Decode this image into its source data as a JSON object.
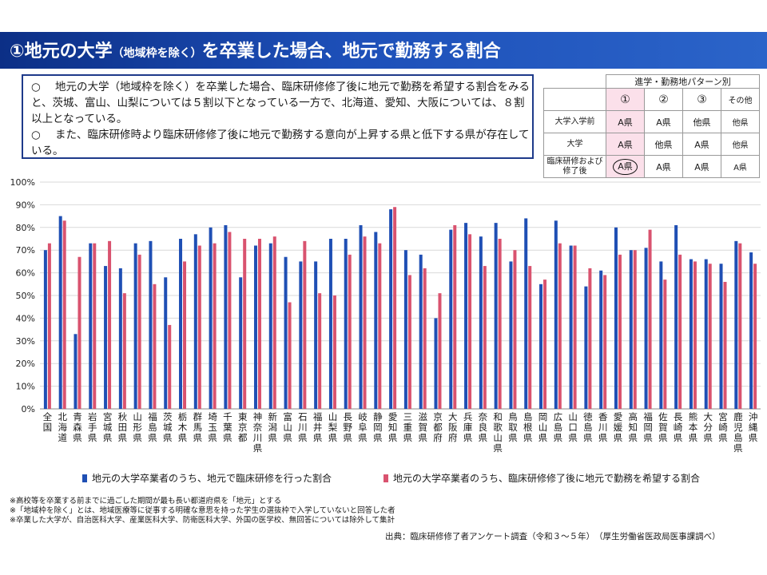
{
  "title": {
    "prefix": "①地元の大学",
    "paren": "（地域枠を除く）",
    "suffix": "を卒業した場合、地元で勤務する割合"
  },
  "summary": {
    "bullet_mark": "○",
    "items": [
      "地元の大学（地域枠を除く）を卒業した場合、臨床研修修了後に地元で勤務を希望する割合をみると、茨城、富山、山梨については５割以下となっている一方で、北海道、愛知、大阪については、８割以上となっている。",
      "また、臨床研修時より臨床研修修了後に地元で勤務する意向が上昇する県と低下する県が存在している。"
    ]
  },
  "pattern_table": {
    "header": "進学・勤務地パターン別",
    "columns": [
      "①",
      "②",
      "③",
      "その他"
    ],
    "rows": [
      {
        "label": "大学入学前",
        "cells": [
          "A県",
          "A県",
          "他県",
          "他県"
        ]
      },
      {
        "label": "大学",
        "cells": [
          "A県",
          "他県",
          "A県",
          "他県"
        ]
      },
      {
        "label": "臨床研修および修了後",
        "cells": [
          "A県",
          "A県",
          "A県",
          "A県"
        ]
      }
    ]
  },
  "chart_data": {
    "type": "bar",
    "ylim": [
      0,
      100
    ],
    "yticks": [
      "0%",
      "10%",
      "20%",
      "30%",
      "40%",
      "50%",
      "60%",
      "70%",
      "80%",
      "90%",
      "100%"
    ],
    "categories": [
      "全国",
      "北海道",
      "青森県",
      "岩手県",
      "宮城県",
      "秋田県",
      "山形県",
      "福島県",
      "茨城県",
      "栃木県",
      "群馬県",
      "埼玉県",
      "千葉県",
      "東京都",
      "神奈川県",
      "新潟県",
      "富山県",
      "石川県",
      "福井県",
      "山梨県",
      "長野県",
      "岐阜県",
      "静岡県",
      "愛知県",
      "三重県",
      "滋賀県",
      "京都府",
      "大阪府",
      "兵庫県",
      "奈良県",
      "和歌山県",
      "鳥取県",
      "島根県",
      "岡山県",
      "広島県",
      "山口県",
      "徳島県",
      "香川県",
      "愛媛県",
      "高知県",
      "福岡県",
      "佐賀県",
      "長崎県",
      "熊本県",
      "大分県",
      "宮崎県",
      "鹿児島県",
      "沖縄県"
    ],
    "series": [
      {
        "name": "地元の大学卒業者のうち、地元で臨床研修を行った割合",
        "color": "#1f4fb4",
        "values": [
          70,
          85,
          33,
          73,
          63,
          62,
          73,
          74,
          58,
          75,
          77,
          80,
          81,
          58,
          72,
          73,
          67,
          65,
          65,
          75,
          75,
          81,
          78,
          88,
          70,
          68,
          40,
          79,
          82,
          76,
          82,
          65,
          84,
          55,
          83,
          72,
          54,
          61,
          80,
          70,
          71,
          65,
          81,
          66,
          66,
          64,
          74,
          69
        ]
      },
      {
        "name": "地元の大学卒業者のうち、臨床研修修了後に地元で勤務を希望する割合",
        "color": "#d9536f",
        "values": [
          73,
          83,
          67,
          73,
          74,
          51,
          68,
          55,
          37,
          65,
          72,
          73,
          78,
          75,
          75,
          76,
          47,
          74,
          51,
          50,
          68,
          76,
          73,
          89,
          59,
          62,
          51,
          81,
          77,
          63,
          75,
          70,
          63,
          57,
          73,
          72,
          62,
          59,
          68,
          70,
          79,
          57,
          68,
          65,
          64,
          56,
          73,
          64
        ]
      }
    ]
  },
  "notes": [
    "※高校等を卒業する前までに過ごした期間が最も長い都道府県を「地元」とする",
    "※「地域枠を除く」とは、地域医療等に従事する明確な意思を持った学生の選抜枠で入学していないと回答した者",
    "※卒業した大学が、自治医科大学、産業医科大学、防衛医科大学、外国の医学校、無回答については除外して集計"
  ],
  "source": "出典：臨床研修修了者アンケート調査（令和３～５年）　（厚生労働省医政局医事課調べ）"
}
